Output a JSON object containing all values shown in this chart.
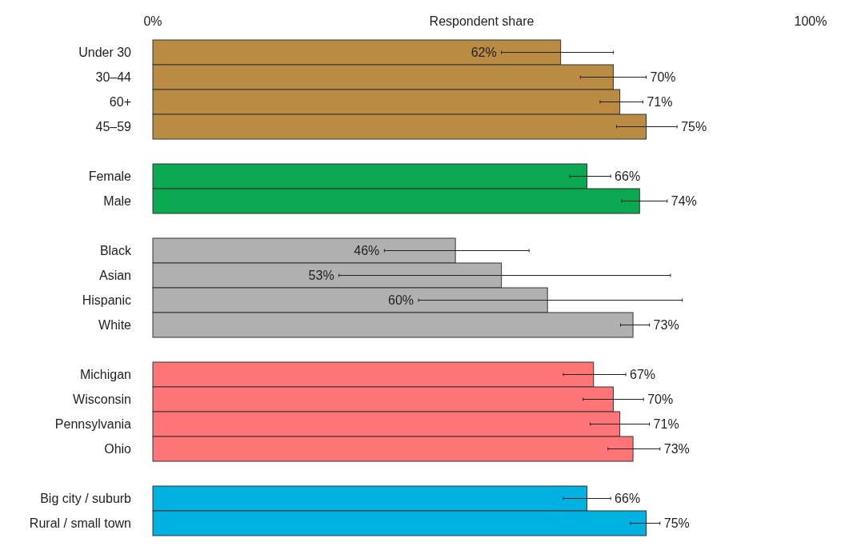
{
  "chart_data": {
    "type": "bar",
    "orientation": "horizontal",
    "xlabel": "Respondent share",
    "categories": [
      "Under 30",
      "30–44",
      "60+",
      "45–59",
      null,
      "Female",
      "Male",
      null,
      "Black",
      "Asian",
      "Hispanic",
      "White",
      null,
      "Michigan",
      "Wisconsin",
      "Pennsylvania",
      "Ohio",
      null,
      "Big city / suburb",
      "Rural / small town"
    ],
    "values": [
      62,
      70,
      71,
      75,
      null,
      66,
      74,
      null,
      46,
      53,
      60,
      73,
      null,
      67,
      70,
      71,
      73,
      null,
      66,
      75
    ],
    "colors": [
      "#b98b43",
      "#b98b43",
      "#b98b43",
      "#b98b43",
      null,
      "#0aa951",
      "#0aa951",
      null,
      "#b0b0b0",
      "#b0b0b0",
      "#b0b0b0",
      "#b0b0b0",
      null,
      "#ff7477",
      "#ff7477",
      "#ff7477",
      "#ff7477",
      null,
      "#00b1e2",
      "#00b1e2"
    ],
    "errors": [
      [
        53,
        70
      ],
      [
        65,
        75
      ],
      [
        68,
        74.5
      ],
      [
        70.5,
        79.7
      ],
      null,
      [
        63.4,
        69.6
      ],
      [
        71.3,
        78.2
      ],
      null,
      [
        35.2,
        57.2
      ],
      [
        28.3,
        78.7
      ],
      [
        40.4,
        80.5
      ],
      [
        71.1,
        75.5
      ],
      null,
      [
        62.4,
        71.9
      ],
      [
        65.4,
        74.6
      ],
      [
        66.5,
        75.5
      ],
      [
        69.2,
        77.1
      ],
      null,
      [
        62.4,
        69.6
      ],
      [
        72.6,
        77.1
      ]
    ],
    "value_labels": [
      "62%",
      "70%",
      "71%",
      "75%",
      null,
      "66%",
      "74%",
      null,
      "46%",
      "53%",
      "60%",
      "73%",
      null,
      "67%",
      "70%",
      "71%",
      "73%",
      null,
      "66%",
      "75%"
    ],
    "xlim": [
      0,
      100
    ],
    "xticks": [
      {
        "value": 0,
        "label": "0%"
      },
      {
        "value": 100,
        "label": "100%"
      }
    ]
  }
}
